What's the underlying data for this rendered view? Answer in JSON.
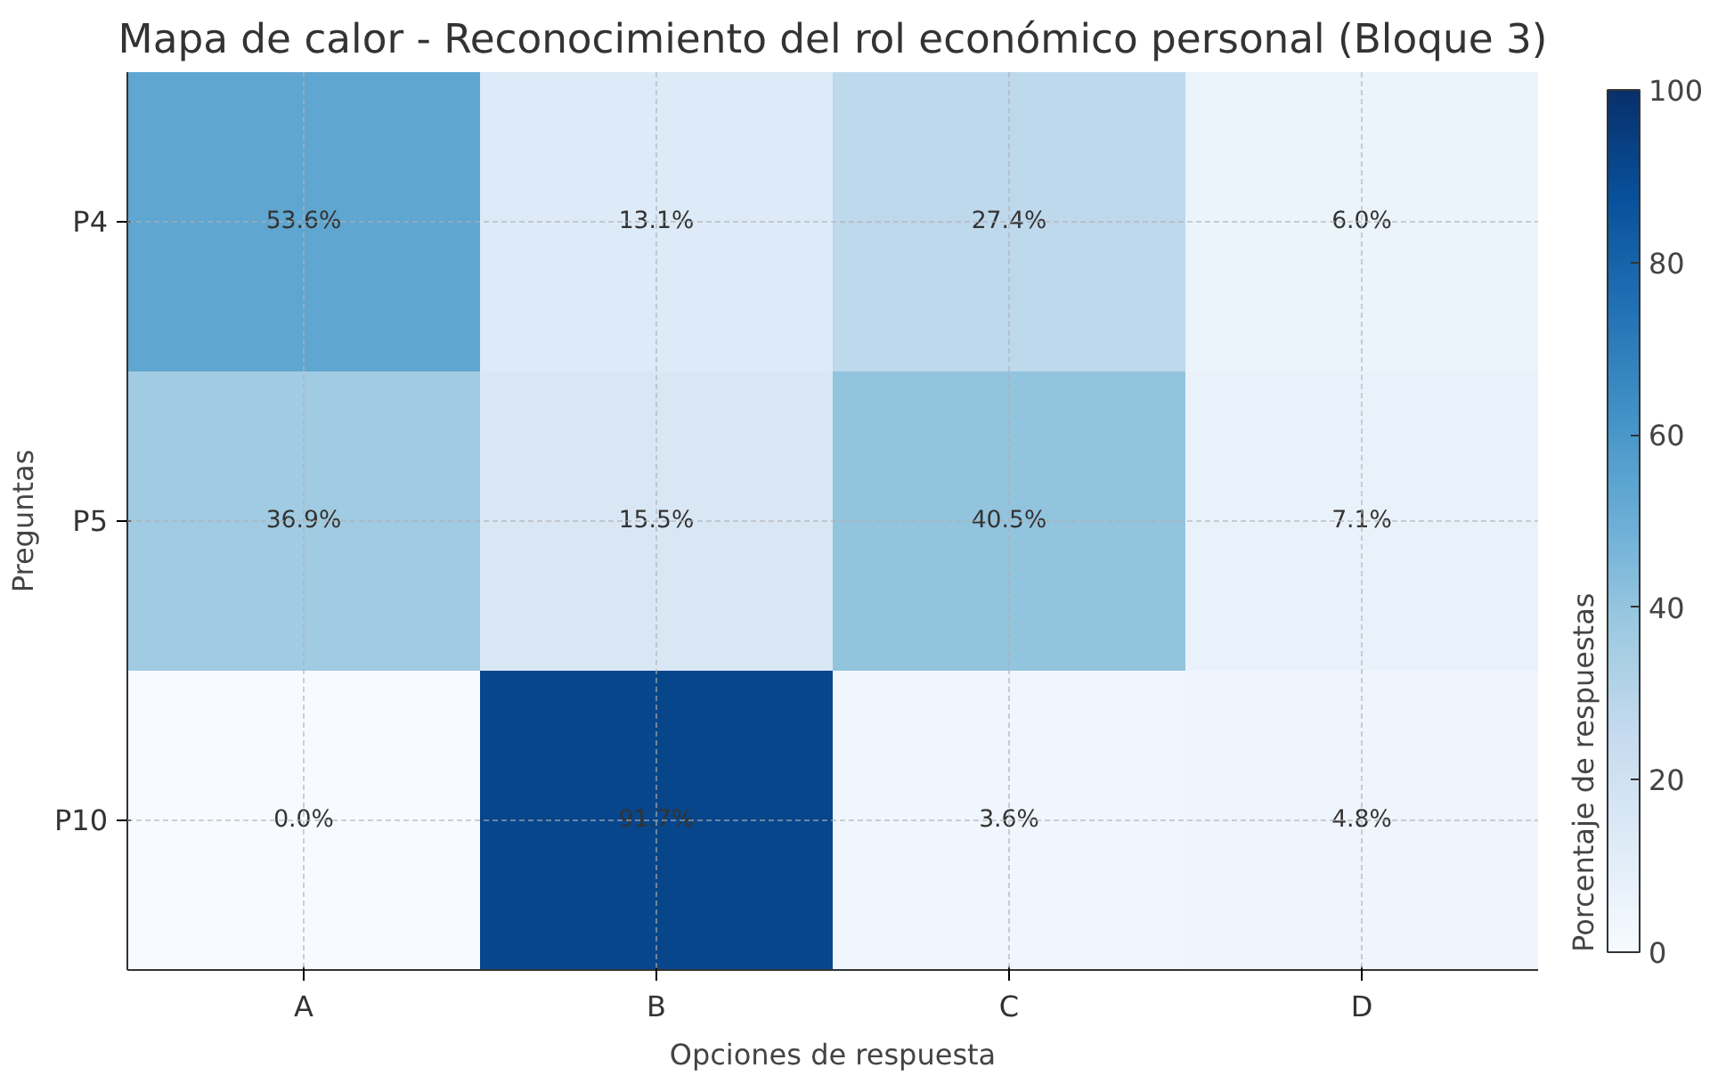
{
  "chart_data": {
    "type": "heatmap",
    "title": "Mapa de calor - Reconocimiento del rol económico personal (Bloque 3)",
    "xlabel": "Opciones de respuesta",
    "ylabel": "Preguntas",
    "clabel": "Porcentaje de respuestas",
    "categories": [
      "A",
      "B",
      "C",
      "D"
    ],
    "y_categories": [
      "P4",
      "P5",
      "P10"
    ],
    "cells": [
      [
        53.6,
        13.1,
        27.4,
        6.0
      ],
      [
        36.9,
        15.5,
        40.5,
        7.1
      ],
      [
        0.0,
        91.7,
        3.6,
        4.8
      ]
    ],
    "cell_labels": [
      [
        "53.6%",
        "13.1%",
        "27.4%",
        "6.0%"
      ],
      [
        "36.9%",
        "15.5%",
        "40.5%",
        "7.1%"
      ],
      [
        "0.0%",
        "91.7%",
        "3.6%",
        "4.8%"
      ]
    ],
    "clim": [
      0,
      100
    ],
    "cticks": [
      0,
      20,
      40,
      60,
      80,
      100
    ],
    "grid": true
  }
}
